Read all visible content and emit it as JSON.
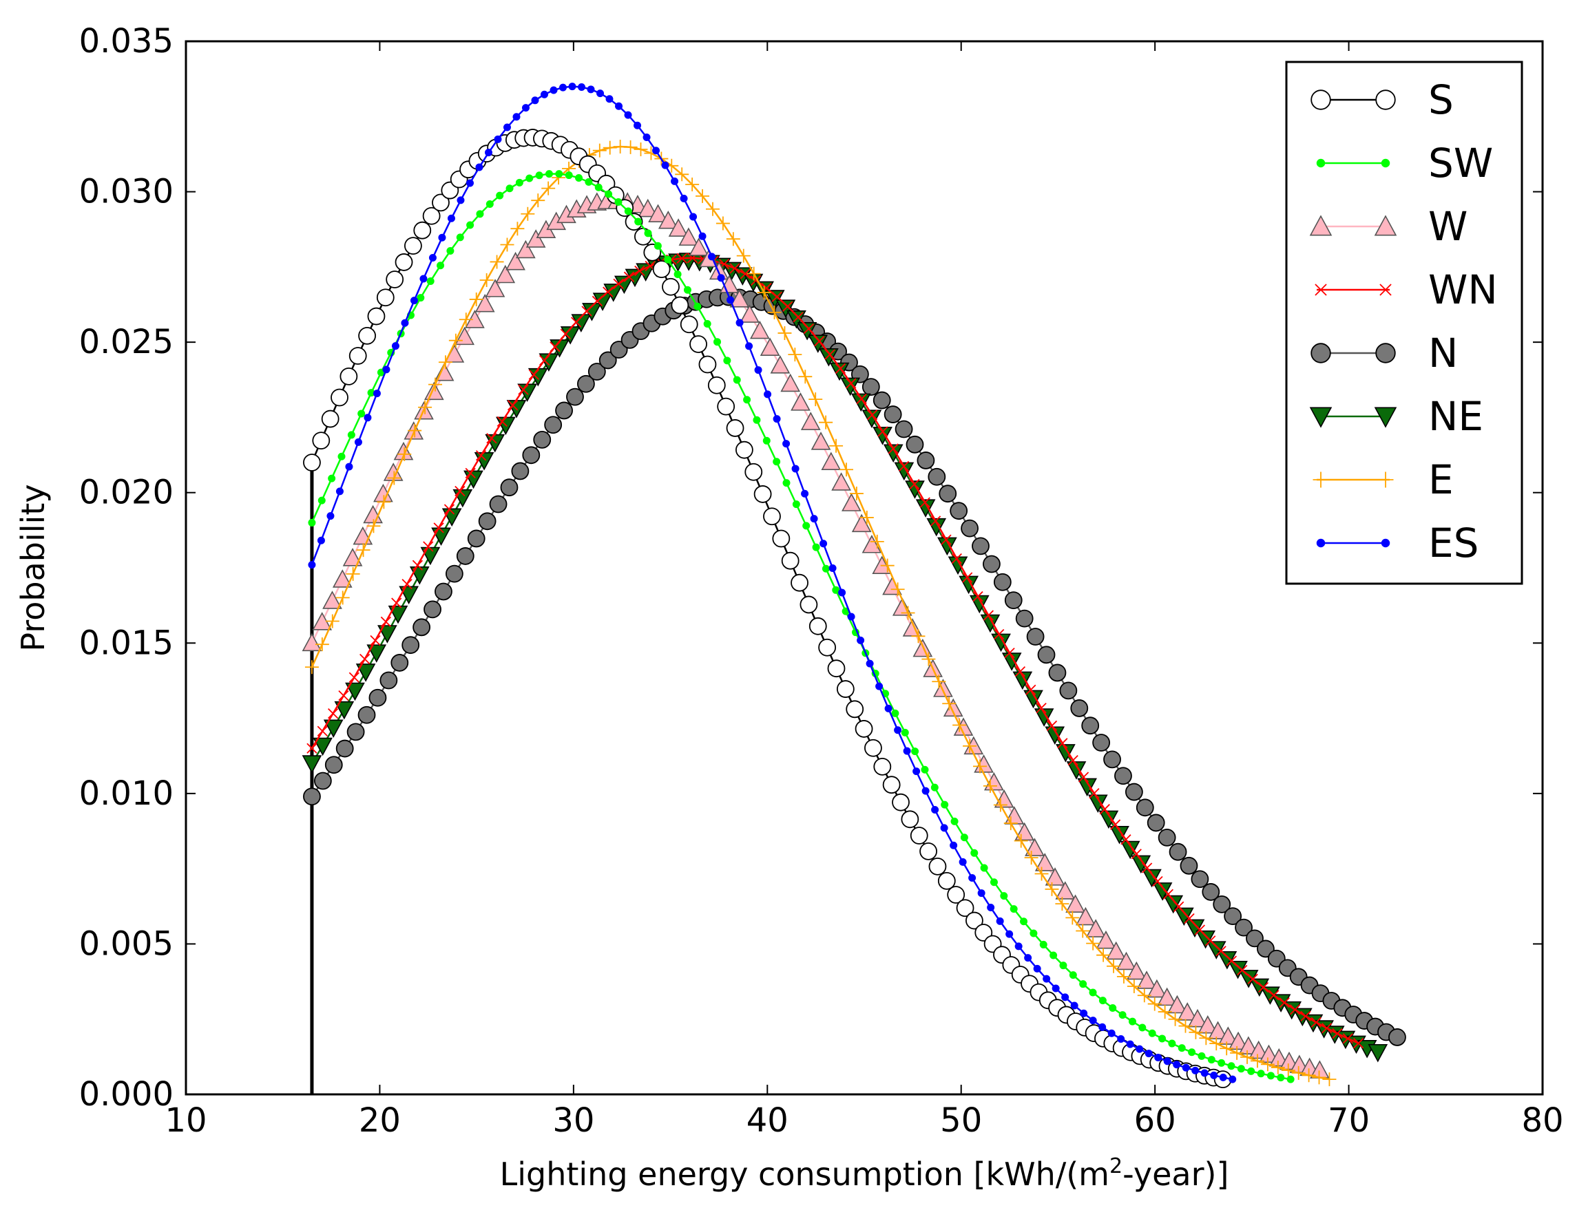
{
  "chart_data": {
    "type": "line",
    "title": "",
    "xlabel": "Lighting energy consumption [kWh/(m",
    "xlabel_sup": "2",
    "xlabel_tail": "-year)]",
    "ylabel": "Probability",
    "xlim": [
      10,
      80
    ],
    "ylim": [
      0,
      0.035
    ],
    "xticks": [
      10,
      20,
      30,
      40,
      50,
      60,
      70,
      80
    ],
    "xtick_labels": [
      "10",
      "20",
      "30",
      "40",
      "50",
      "60",
      "70",
      "80"
    ],
    "yticks": [
      0,
      0.005,
      0.01,
      0.015,
      0.02,
      0.025,
      0.03,
      0.035
    ],
    "ytick_labels": [
      "0.000",
      "0.005",
      "0.010",
      "0.015",
      "0.020",
      "0.025",
      "0.030",
      "0.035"
    ],
    "grid": false,
    "legend_position": "top-right",
    "n_points": 100,
    "series": [
      {
        "name": "S",
        "marker": "open-circle",
        "color": "#000000",
        "face": "#ffffff",
        "line": "#000000",
        "x_start": 16.5,
        "x_end": 63.5,
        "y_start": 0.021,
        "peak_x": 27.8,
        "peak_y": 0.0318,
        "y_end": 0.0005
      },
      {
        "name": "SW",
        "marker": "small-dot",
        "color": "#00ff00",
        "face": "#00ff00",
        "line": "#00ff00",
        "x_start": 16.5,
        "x_end": 67.0,
        "y_start": 0.019,
        "peak_x": 29.0,
        "peak_y": 0.0306,
        "y_end": 0.0005
      },
      {
        "name": "W",
        "marker": "triangle-up",
        "color": "#555555",
        "face": "#ffb6c1",
        "line": "#ffb6c1",
        "x_start": 16.5,
        "x_end": 68.5,
        "y_start": 0.015,
        "peak_x": 32.0,
        "peak_y": 0.0297,
        "y_end": 0.0008
      },
      {
        "name": "WN",
        "marker": "x",
        "color": "#ff0000",
        "face": "#ff0000",
        "line": "#ff0000",
        "x_start": 16.5,
        "x_end": 70.5,
        "y_start": 0.0115,
        "peak_x": 36.0,
        "peak_y": 0.0278,
        "y_end": 0.0017
      },
      {
        "name": "N",
        "marker": "filled-circle",
        "color": "#000000",
        "face": "#777777",
        "line": "#555555",
        "x_start": 16.5,
        "x_end": 72.5,
        "y_start": 0.0099,
        "peak_x": 38.0,
        "peak_y": 0.0265,
        "y_end": 0.0019
      },
      {
        "name": "NE",
        "marker": "triangle-down",
        "color": "#000000",
        "face": "#0a6a0a",
        "line": "#0a6a0a",
        "x_start": 16.5,
        "x_end": 71.5,
        "y_start": 0.011,
        "peak_x": 36.0,
        "peak_y": 0.0277,
        "y_end": 0.0014
      },
      {
        "name": "E",
        "marker": "plus",
        "color": "#ffa500",
        "face": "#ffa500",
        "line": "#ffa500",
        "x_start": 16.5,
        "x_end": 69.0,
        "y_start": 0.0142,
        "peak_x": 32.5,
        "peak_y": 0.0315,
        "y_end": 0.0005
      },
      {
        "name": "ES",
        "marker": "small-dot",
        "color": "#0000ff",
        "face": "#0000ff",
        "line": "#0000ff",
        "x_start": 16.5,
        "x_end": 64.0,
        "y_start": 0.0176,
        "peak_x": 30.0,
        "peak_y": 0.0335,
        "y_end": 0.0005
      }
    ],
    "vertical_line": {
      "x": 16.5,
      "y_from": 0,
      "y_to": 0.021,
      "color": "#000000"
    }
  }
}
